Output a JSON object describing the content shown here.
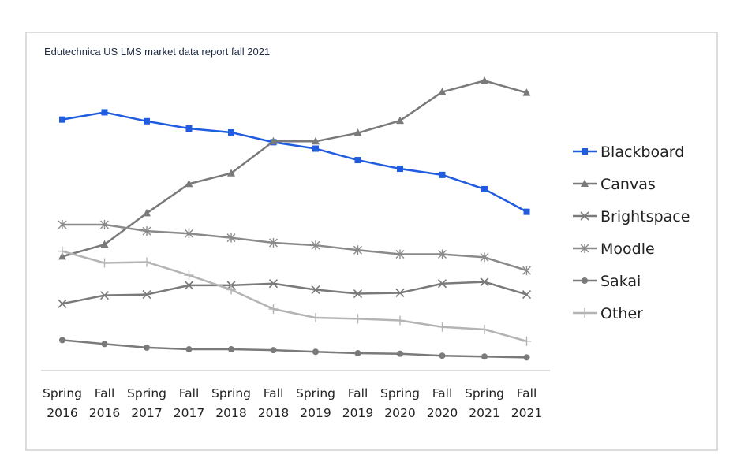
{
  "chart_data": {
    "type": "line",
    "title": "Edutechnica US LMS market data report fall 2021",
    "xlabel": "",
    "ylabel": "",
    "ylim": [
      0,
      100
    ],
    "grid": false,
    "legend_position": "right",
    "categories": [
      [
        "Spring",
        "2016"
      ],
      [
        "Fall",
        "2016"
      ],
      [
        "Spring",
        "2017"
      ],
      [
        "Fall",
        "2017"
      ],
      [
        "Spring",
        "2018"
      ],
      [
        "Fall",
        "2018"
      ],
      [
        "Spring",
        "2019"
      ],
      [
        "Fall",
        "2019"
      ],
      [
        "Spring",
        "2020"
      ],
      [
        "Fall",
        "2020"
      ],
      [
        "Spring",
        "2021"
      ],
      [
        "Fall",
        "2021"
      ]
    ],
    "series": [
      {
        "name": "Blackboard",
        "color": "#1f5ce0",
        "marker": "square",
        "values": [
          89.8,
          92.4,
          89.2,
          86.6,
          85.2,
          81.7,
          79.4,
          75.3,
          72.2,
          70.0,
          64.9,
          56.8
        ]
      },
      {
        "name": "Canvas",
        "color": "#7a7a7a",
        "marker": "triangle",
        "values": [
          40.8,
          45.1,
          56.3,
          66.8,
          70.6,
          82.0,
          82.0,
          85.0,
          89.4,
          99.7,
          103.7,
          99.4
        ]
      },
      {
        "name": "Brightspace",
        "color": "#7a7a7a",
        "marker": "x",
        "values": [
          23.9,
          26.9,
          27.2,
          30.5,
          30.5,
          31.1,
          28.9,
          27.5,
          27.8,
          31.1,
          31.7,
          27.2
        ]
      },
      {
        "name": "Moodle",
        "color": "#8a8a8a",
        "marker": "asterisk",
        "values": [
          52.2,
          52.2,
          49.9,
          49.0,
          47.5,
          45.7,
          44.8,
          43.1,
          41.6,
          41.6,
          40.5,
          35.8
        ]
      },
      {
        "name": "Sakai",
        "color": "#7a7a7a",
        "marker": "circle",
        "values": [
          10.9,
          9.5,
          8.2,
          7.6,
          7.6,
          7.3,
          6.7,
          6.2,
          6.0,
          5.3,
          5.0,
          4.7
        ]
      },
      {
        "name": "Other",
        "color": "#b4b4b4",
        "marker": "plus",
        "values": [
          42.7,
          38.5,
          38.8,
          34.1,
          28.9,
          22.0,
          18.9,
          18.5,
          17.9,
          15.6,
          14.7,
          10.5
        ]
      }
    ]
  }
}
